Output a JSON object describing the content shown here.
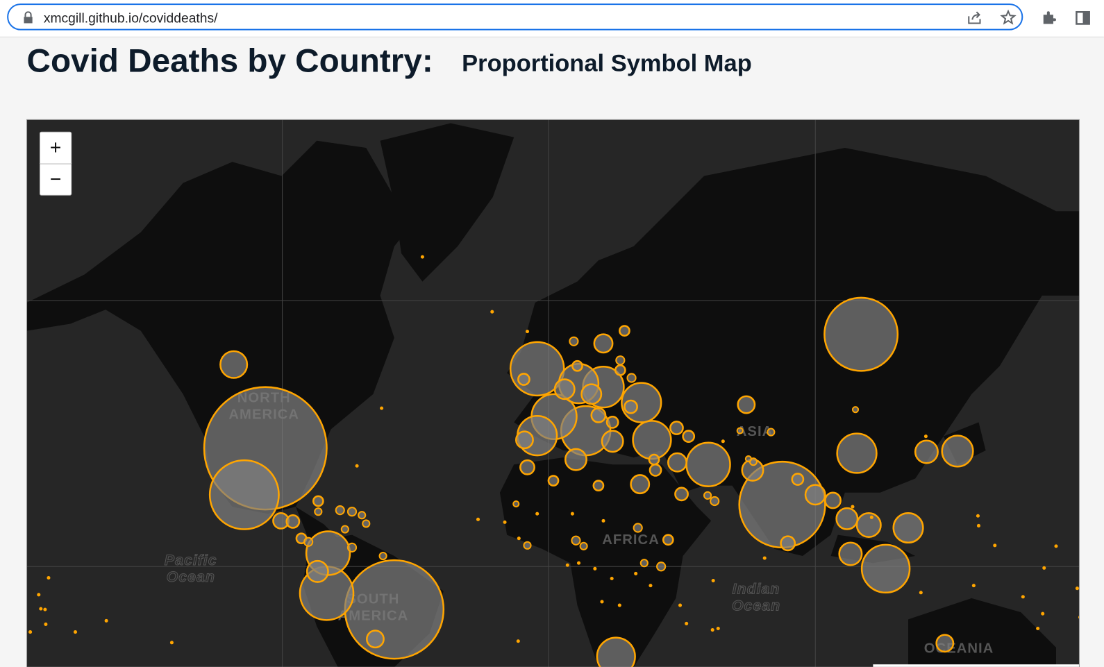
{
  "browser": {
    "url": "xmcgill.github.io/coviddeaths/"
  },
  "header": {
    "title": "Covid Deaths by Country:",
    "subtitle": "Proportional Symbol Map"
  },
  "map": {
    "zoom_in": "+",
    "zoom_out": "−",
    "labels": [
      {
        "lines": [
          "NORTH",
          "AMERICA"
        ]
      },
      {
        "lines": [
          "SOUTH",
          "AMERICA"
        ]
      },
      {
        "lines": [
          "Pacific",
          "Ocean"
        ]
      },
      {
        "lines": [
          "AFRICA"
        ]
      },
      {
        "lines": [
          "ASIA"
        ]
      },
      {
        "lines": [
          "Indian",
          "Ocean"
        ]
      },
      {
        "lines": [
          "OCEANIA"
        ]
      }
    ]
  }
}
